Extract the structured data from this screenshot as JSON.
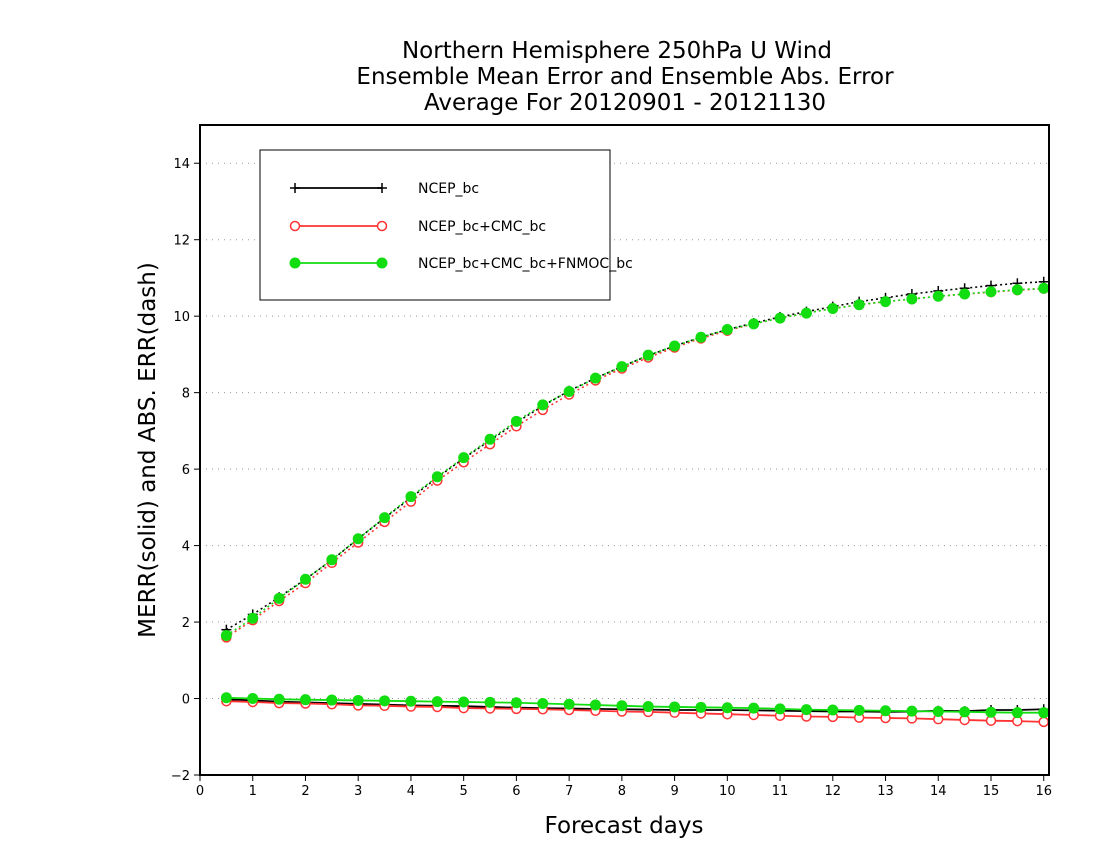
{
  "chart_data": {
    "type": "line",
    "title_lines": [
      "Northern Hemisphere 250hPa U Wind",
      "Ensemble Mean Error and Ensemble Abs. Error",
      "Average For 20120901 - 20121130"
    ],
    "xlabel": "Forecast days",
    "ylabel": "MERR(solid) and ABS. ERR(dash)",
    "xlim": [
      0,
      16.1
    ],
    "ylim": [
      -2,
      15
    ],
    "xticks": [
      0,
      1,
      2,
      3,
      4,
      5,
      6,
      7,
      8,
      9,
      10,
      11,
      12,
      13,
      14,
      15,
      16
    ],
    "yticks": [
      -2,
      0,
      2,
      4,
      6,
      8,
      10,
      12,
      14
    ],
    "grid": "horizontal dotted",
    "legend_position": "top-left",
    "x": [
      0.5,
      1,
      1.5,
      2,
      2.5,
      3,
      3.5,
      4,
      4.5,
      5,
      5.5,
      6,
      6.5,
      7,
      7.5,
      8,
      8.5,
      9,
      9.5,
      10,
      10.5,
      11,
      11.5,
      12,
      12.5,
      13,
      13.5,
      14,
      14.5,
      15,
      15.5,
      16
    ],
    "series": [
      {
        "name": "NCEP_bc",
        "color": "#000000",
        "marker": "plus",
        "abs_error": [
          1.8,
          2.2,
          2.65,
          3.12,
          3.62,
          4.18,
          4.72,
          5.25,
          5.78,
          6.28,
          6.75,
          7.22,
          7.65,
          8.05,
          8.38,
          8.68,
          8.97,
          9.22,
          9.45,
          9.65,
          9.82,
          9.98,
          10.12,
          10.25,
          10.38,
          10.48,
          10.58,
          10.66,
          10.73,
          10.8,
          10.86,
          10.9
        ],
        "mean_error": [
          -0.02,
          -0.05,
          -0.08,
          -0.1,
          -0.12,
          -0.14,
          -0.16,
          -0.18,
          -0.19,
          -0.2,
          -0.22,
          -0.24,
          -0.25,
          -0.26,
          -0.27,
          -0.28,
          -0.29,
          -0.3,
          -0.3,
          -0.3,
          -0.31,
          -0.32,
          -0.33,
          -0.34,
          -0.34,
          -0.35,
          -0.34,
          -0.32,
          -0.33,
          -0.3,
          -0.3,
          -0.28
        ]
      },
      {
        "name": "NCEP_bc+CMC_bc",
        "color": "#ff3333",
        "marker": "open-circle",
        "abs_error": [
          1.6,
          2.05,
          2.55,
          3.02,
          3.55,
          4.08,
          4.62,
          5.15,
          5.7,
          6.18,
          6.65,
          7.12,
          7.55,
          7.95,
          8.32,
          8.63,
          8.92,
          9.18,
          9.42,
          9.62,
          9.8,
          9.95,
          10.08,
          10.2,
          10.3,
          10.38,
          10.45,
          10.52,
          10.58,
          10.63,
          10.68,
          10.72
        ],
        "mean_error": [
          -0.07,
          -0.09,
          -0.12,
          -0.13,
          -0.15,
          -0.18,
          -0.19,
          -0.21,
          -0.22,
          -0.25,
          -0.26,
          -0.27,
          -0.28,
          -0.3,
          -0.32,
          -0.34,
          -0.35,
          -0.37,
          -0.39,
          -0.41,
          -0.43,
          -0.45,
          -0.47,
          -0.48,
          -0.5,
          -0.51,
          -0.52,
          -0.54,
          -0.56,
          -0.58,
          -0.59,
          -0.61
        ]
      },
      {
        "name": "NCEP_bc+CMC_bc+FNMOC_bc",
        "color": "#11dd11",
        "marker": "filled-circle",
        "abs_error": [
          1.65,
          2.1,
          2.62,
          3.12,
          3.63,
          4.18,
          4.73,
          5.28,
          5.8,
          6.3,
          6.78,
          7.25,
          7.68,
          8.03,
          8.38,
          8.68,
          8.98,
          9.22,
          9.45,
          9.65,
          9.8,
          9.95,
          10.08,
          10.2,
          10.3,
          10.38,
          10.45,
          10.52,
          10.58,
          10.64,
          10.69,
          10.73
        ],
        "mean_error": [
          0.02,
          0.0,
          -0.02,
          -0.03,
          -0.04,
          -0.05,
          -0.06,
          -0.07,
          -0.08,
          -0.09,
          -0.1,
          -0.11,
          -0.13,
          -0.15,
          -0.17,
          -0.19,
          -0.21,
          -0.22,
          -0.23,
          -0.24,
          -0.25,
          -0.27,
          -0.29,
          -0.3,
          -0.31,
          -0.32,
          -0.33,
          -0.34,
          -0.35,
          -0.36,
          -0.37,
          -0.37
        ]
      }
    ]
  }
}
